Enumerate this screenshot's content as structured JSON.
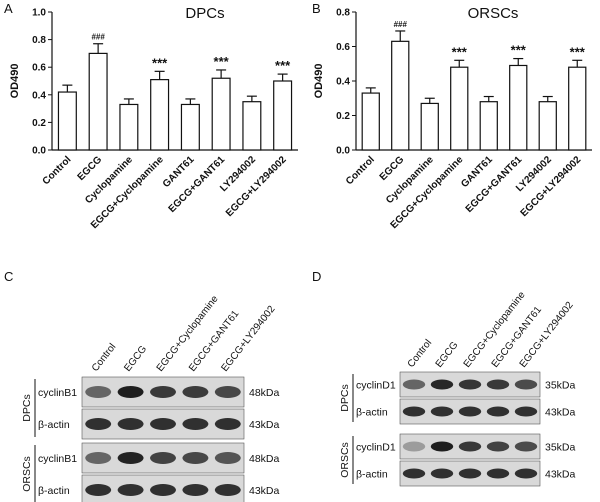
{
  "chart_data": [
    {
      "type": "bar",
      "panel": "A",
      "title": "DPCs",
      "ylabel": "OD490",
      "ylim": [
        0,
        1.0
      ],
      "yticks": [
        "0.0",
        "0.2",
        "0.4",
        "0.6",
        "0.8",
        "1.0"
      ],
      "categories": [
        "Control",
        "EGCG",
        "Cyclopamine",
        "EGCG+Cyclopamine",
        "GANT61",
        "EGCG+GANT61",
        "LY294002",
        "EGCG+LY294002"
      ],
      "values": [
        0.42,
        0.7,
        0.33,
        0.51,
        0.33,
        0.52,
        0.35,
        0.5
      ],
      "errors": [
        0.05,
        0.07,
        0.04,
        0.06,
        0.04,
        0.06,
        0.04,
        0.05
      ],
      "annotations": [
        "",
        "###",
        "",
        "***",
        "",
        "***",
        "",
        "***"
      ]
    },
    {
      "type": "bar",
      "panel": "B",
      "title": "ORSCs",
      "ylabel": "OD490",
      "ylim": [
        0,
        0.8
      ],
      "yticks": [
        "0.0",
        "0.2",
        "0.4",
        "0.6",
        "0.8"
      ],
      "categories": [
        "Control",
        "EGCG",
        "Cyclopamine",
        "EGCG+Cyclopamine",
        "GANT61",
        "EGCG+GANT61",
        "LY294002",
        "EGCG+LY294002"
      ],
      "values": [
        0.33,
        0.63,
        0.27,
        0.48,
        0.28,
        0.49,
        0.28,
        0.48
      ],
      "errors": [
        0.03,
        0.06,
        0.03,
        0.04,
        0.03,
        0.04,
        0.03,
        0.04
      ],
      "annotations": [
        "",
        "###",
        "",
        "***",
        "",
        "***",
        "",
        "***"
      ]
    }
  ],
  "blots": [
    {
      "panel": "C",
      "lanes": [
        "Control",
        "EGCG",
        "EGCG+Cyclopamine",
        "EGCG+GANT61",
        "EGCG+LY294002"
      ],
      "groups": [
        {
          "name": "DPCs",
          "rows": [
            {
              "label": "cyclinB1",
              "kda": "48kDa",
              "intensity": [
                0.55,
                0.95,
                0.8,
                0.78,
                0.72
              ]
            },
            {
              "label": "β-actin",
              "kda": "43kDa",
              "intensity": [
                0.85,
                0.85,
                0.85,
                0.85,
                0.85
              ]
            }
          ]
        },
        {
          "name": "ORSCs",
          "rows": [
            {
              "label": "cyclinB1",
              "kda": "48kDa",
              "intensity": [
                0.55,
                0.92,
                0.75,
                0.72,
                0.65
              ]
            },
            {
              "label": "β-actin",
              "kda": "43kDa",
              "intensity": [
                0.85,
                0.85,
                0.85,
                0.85,
                0.85
              ]
            }
          ]
        }
      ]
    },
    {
      "panel": "D",
      "lanes": [
        "Control",
        "EGCG",
        "EGCG+Cyclopamine",
        "EGCG+GANT61",
        "EGCG+LY294002"
      ],
      "groups": [
        {
          "name": "DPCs",
          "rows": [
            {
              "label": "cyclinD1",
              "kda": "35kDa",
              "intensity": [
                0.55,
                0.9,
                0.82,
                0.8,
                0.7
              ]
            },
            {
              "label": "β-actin",
              "kda": "43kDa",
              "intensity": [
                0.85,
                0.85,
                0.85,
                0.85,
                0.85
              ]
            }
          ]
        },
        {
          "name": "ORSCs",
          "rows": [
            {
              "label": "cyclinD1",
              "kda": "35kDa",
              "intensity": [
                0.25,
                0.95,
                0.8,
                0.75,
                0.7
              ]
            },
            {
              "label": "β-actin",
              "kda": "43kDa",
              "intensity": [
                0.85,
                0.85,
                0.85,
                0.85,
                0.85
              ]
            }
          ]
        }
      ]
    }
  ]
}
